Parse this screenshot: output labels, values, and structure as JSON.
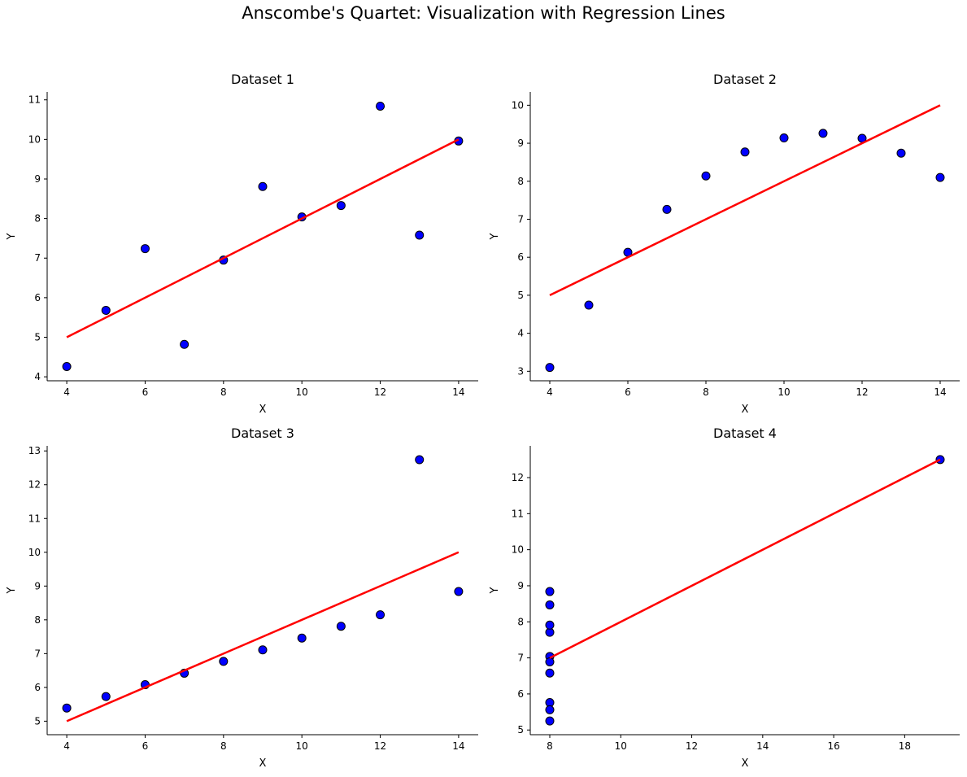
{
  "figure": {
    "title": "Anscombe's Quartet: Visualization with Regression Lines",
    "colors": {
      "point_fill": "#0000ff",
      "point_edge": "#000000",
      "line": "#ff0000"
    }
  },
  "chart_data": [
    {
      "type": "scatter",
      "title": "Dataset 1",
      "xlabel": "X",
      "ylabel": "Y",
      "grid": false,
      "xlim": [
        3.5,
        14.5
      ],
      "ylim": [
        3.9,
        11.2
      ],
      "xticks": [
        4,
        6,
        8,
        10,
        12,
        14
      ],
      "yticks": [
        4,
        5,
        6,
        7,
        8,
        9,
        10,
        11
      ],
      "points": {
        "x": [
          10,
          8,
          13,
          9,
          11,
          14,
          6,
          4,
          12,
          7,
          5
        ],
        "y": [
          8.04,
          6.95,
          7.58,
          8.81,
          8.33,
          9.96,
          7.24,
          4.26,
          10.84,
          4.82,
          5.68
        ]
      },
      "regression": {
        "x": [
          4,
          14
        ],
        "y": [
          5.0,
          10.0
        ]
      }
    },
    {
      "type": "scatter",
      "title": "Dataset 2",
      "xlabel": "X",
      "ylabel": "Y",
      "grid": false,
      "xlim": [
        3.5,
        14.5
      ],
      "ylim": [
        2.75,
        10.35
      ],
      "xticks": [
        4,
        6,
        8,
        10,
        12,
        14
      ],
      "yticks": [
        3,
        4,
        5,
        6,
        7,
        8,
        9,
        10
      ],
      "points": {
        "x": [
          10,
          8,
          13,
          9,
          11,
          14,
          6,
          4,
          12,
          7,
          5
        ],
        "y": [
          9.14,
          8.14,
          8.74,
          8.77,
          9.26,
          8.1,
          6.13,
          3.1,
          9.13,
          7.26,
          4.74
        ]
      },
      "regression": {
        "x": [
          4,
          14
        ],
        "y": [
          5.0,
          10.0
        ]
      }
    },
    {
      "type": "scatter",
      "title": "Dataset 3",
      "xlabel": "X",
      "ylabel": "Y",
      "grid": false,
      "xlim": [
        3.5,
        14.5
      ],
      "ylim": [
        4.6,
        13.15
      ],
      "xticks": [
        4,
        6,
        8,
        10,
        12,
        14
      ],
      "yticks": [
        5,
        6,
        7,
        8,
        9,
        10,
        11,
        12,
        13
      ],
      "points": {
        "x": [
          10,
          8,
          13,
          9,
          11,
          14,
          6,
          4,
          12,
          7,
          5
        ],
        "y": [
          7.46,
          6.77,
          12.74,
          7.11,
          7.81,
          8.84,
          6.08,
          5.39,
          8.15,
          6.42,
          5.73
        ]
      },
      "regression": {
        "x": [
          4,
          14
        ],
        "y": [
          5.0,
          10.0
        ]
      }
    },
    {
      "type": "scatter",
      "title": "Dataset 4",
      "xlabel": "X",
      "ylabel": "Y",
      "grid": false,
      "xlim": [
        7.45,
        19.55
      ],
      "ylim": [
        4.87,
        12.88
      ],
      "xticks": [
        8,
        10,
        12,
        14,
        16,
        18
      ],
      "yticks": [
        5,
        6,
        7,
        8,
        9,
        10,
        11,
        12
      ],
      "points": {
        "x": [
          8,
          8,
          8,
          8,
          8,
          8,
          8,
          19,
          8,
          8,
          8
        ],
        "y": [
          6.58,
          5.76,
          7.71,
          8.84,
          8.47,
          7.04,
          5.25,
          12.5,
          5.56,
          7.91,
          6.89
        ]
      },
      "regression": {
        "x": [
          8,
          19
        ],
        "y": [
          7.0,
          12.5
        ]
      }
    }
  ]
}
